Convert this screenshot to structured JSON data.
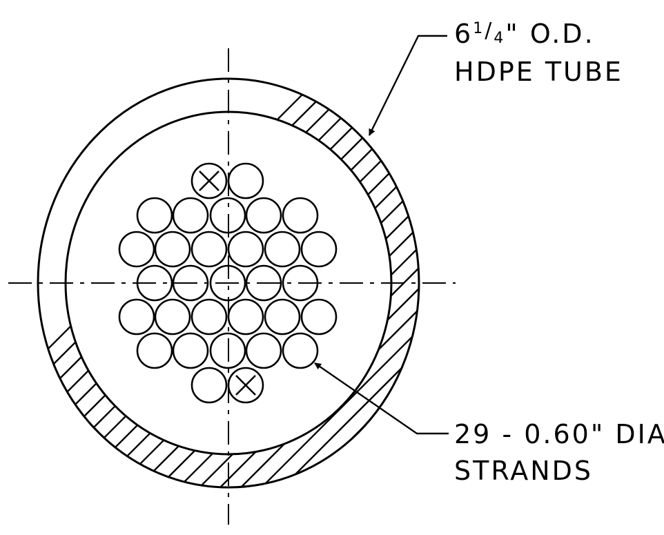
{
  "callouts": {
    "tube": {
      "whole": "6",
      "num": "1",
      "den": "4",
      "rest": "\" O.D.",
      "line2": "HDPE TUBE"
    },
    "strands": {
      "line1": "29 - 0.60\" DIA",
      "line2": "STRANDS"
    }
  },
  "strands": {
    "count": 29,
    "marked_with_x": 2
  }
}
